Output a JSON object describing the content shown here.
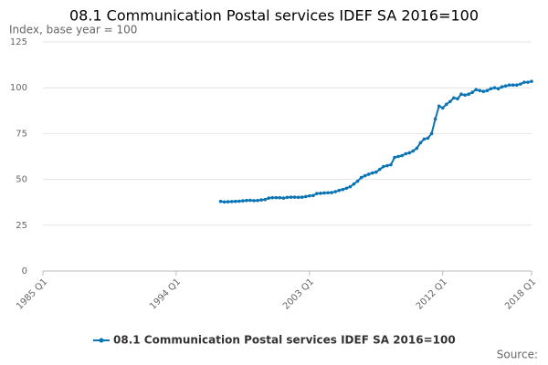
{
  "chart_data": {
    "type": "line",
    "title": "08.1 Communication Postal services IDEF SA 2016=100",
    "subtitle": "Index, base year = 100",
    "source": "Source:",
    "x": [
      1997,
      1997.25,
      1997.5,
      1997.75,
      1998,
      1998.25,
      1998.5,
      1998.75,
      1999,
      1999.25,
      1999.5,
      1999.75,
      2000,
      2000.25,
      2000.5,
      2000.75,
      2001,
      2001.25,
      2001.5,
      2001.75,
      2002,
      2002.25,
      2002.5,
      2002.75,
      2003,
      2003.25,
      2003.5,
      2003.75,
      2004,
      2004.25,
      2004.5,
      2004.75,
      2005,
      2005.25,
      2005.5,
      2005.75,
      2006,
      2006.25,
      2006.5,
      2006.75,
      2007,
      2007.25,
      2007.5,
      2007.75,
      2008,
      2008.25,
      2008.5,
      2008.75,
      2009,
      2009.25,
      2009.5,
      2009.75,
      2010,
      2010.25,
      2010.5,
      2010.75,
      2011,
      2011.25,
      2011.5,
      2011.75,
      2012,
      2012.25,
      2012.5,
      2012.75,
      2013,
      2013.25,
      2013.5,
      2013.75,
      2014,
      2014.25,
      2014.5,
      2014.75,
      2015,
      2015.25,
      2015.5,
      2015.75,
      2016,
      2016.25,
      2016.5,
      2016.75,
      2017,
      2017.25,
      2017.5,
      2017.75,
      2018
    ],
    "series": [
      {
        "name": "08.1 Communication Postal services IDEF SA 2016=100",
        "color": "#0b74b5",
        "values": [
          38,
          37.7,
          37.8,
          37.9,
          38,
          38.1,
          38.3,
          38.5,
          38.6,
          38.4,
          38.5,
          38.8,
          39,
          39.8,
          40,
          40,
          40,
          39.8,
          40.2,
          40.3,
          40.3,
          40.2,
          40.3,
          40.6,
          41,
          41.2,
          42.3,
          42.4,
          42.6,
          42.7,
          42.8,
          43.3,
          44,
          44.5,
          45.2,
          46,
          47.5,
          49,
          51,
          52,
          52.8,
          53.5,
          54,
          55.5,
          57,
          57.5,
          58,
          62,
          62.5,
          63,
          64,
          64.5,
          65.5,
          67,
          70,
          72,
          72.5,
          75,
          83,
          90,
          89,
          91,
          92.5,
          94.5,
          94,
          96.5,
          96,
          96.5,
          97.5,
          99,
          98.5,
          98,
          98.5,
          99.5,
          100,
          99.5,
          100.5,
          101,
          101.5,
          101.5,
          101.5,
          102,
          103,
          103,
          103.5
        ]
      }
    ],
    "xlim": [
      1985,
      2018
    ],
    "xticks": [
      {
        "value": 1985,
        "label": "1985 Q1"
      },
      {
        "value": 1994,
        "label": "1994 Q1"
      },
      {
        "value": 2003,
        "label": "2003 Q1"
      },
      {
        "value": 2012,
        "label": "2012 Q1"
      },
      {
        "value": 2018,
        "label": "2018 Q1"
      }
    ],
    "ylim": [
      0,
      125
    ],
    "yticks": [
      0,
      25,
      50,
      75,
      100,
      125
    ],
    "grid": true
  }
}
